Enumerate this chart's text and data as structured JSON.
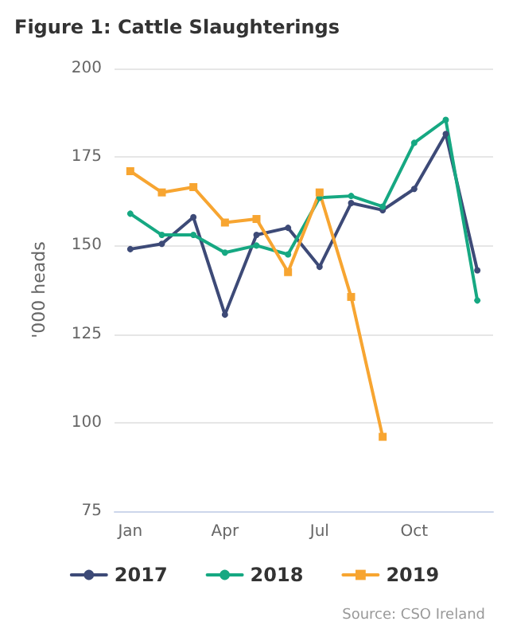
{
  "chart_data": {
    "type": "line",
    "title": "Figure 1: Cattle Slaughterings",
    "ylabel": "'000 heads",
    "annotations": [
      "Source: CSO Ireland"
    ],
    "categories": [
      "Jan",
      null,
      null,
      "Apr",
      null,
      null,
      "Jul",
      null,
      null,
      "Oct",
      null,
      null
    ],
    "series": [
      {
        "name": "2017",
        "color": "#3d4a77",
        "marker": "circle",
        "values": [
          149,
          150.5,
          158,
          130.5,
          153,
          155,
          144,
          162,
          160,
          166,
          181.5,
          143
        ]
      },
      {
        "name": "2018",
        "color": "#16a882",
        "marker": "circle",
        "values": [
          159,
          153,
          153,
          148,
          150,
          147.5,
          163.5,
          164,
          161,
          179,
          185.5,
          134.5
        ]
      },
      {
        "name": "2019",
        "color": "#f7a531",
        "marker": "square",
        "values": [
          171,
          165,
          166.5,
          156.5,
          157.5,
          142.5,
          165,
          135.5,
          96,
          null,
          null,
          null
        ]
      }
    ],
    "ylim": [
      75,
      200
    ],
    "yticks": [
      75,
      100,
      125,
      150,
      175,
      200
    ],
    "grid": "y",
    "legend": "bottom",
    "line_style": "solid"
  }
}
